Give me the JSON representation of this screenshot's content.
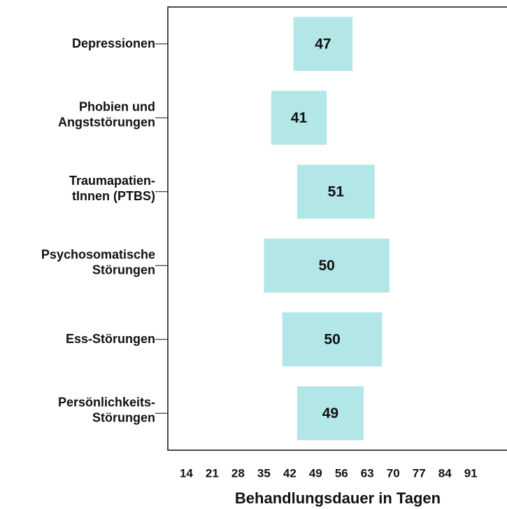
{
  "chart_data": {
    "type": "range_bar",
    "categories": [
      [
        "Depressionen"
      ],
      [
        "Phobien und",
        "Angststörungen"
      ],
      [
        "Traumapatien-",
        "tInnen (PTBS)"
      ],
      [
        "Psychosomatische",
        "Störungen"
      ],
      [
        "Ess-Störungen"
      ],
      [
        "Persönlichkeits-",
        "Störungen"
      ]
    ],
    "low": [
      43,
      37,
      44,
      35,
      40,
      44
    ],
    "high": [
      59,
      52,
      65,
      69,
      67,
      62
    ],
    "values": [
      47,
      41,
      51,
      50,
      50,
      49
    ],
    "color": "#b3e6e6",
    "xlabel": "Behandlungsdauer in Tagen",
    "xlim": [
      9,
      101
    ],
    "xticks": [
      14,
      21,
      28,
      35,
      42,
      49,
      56,
      63,
      70,
      77,
      84,
      91
    ]
  }
}
